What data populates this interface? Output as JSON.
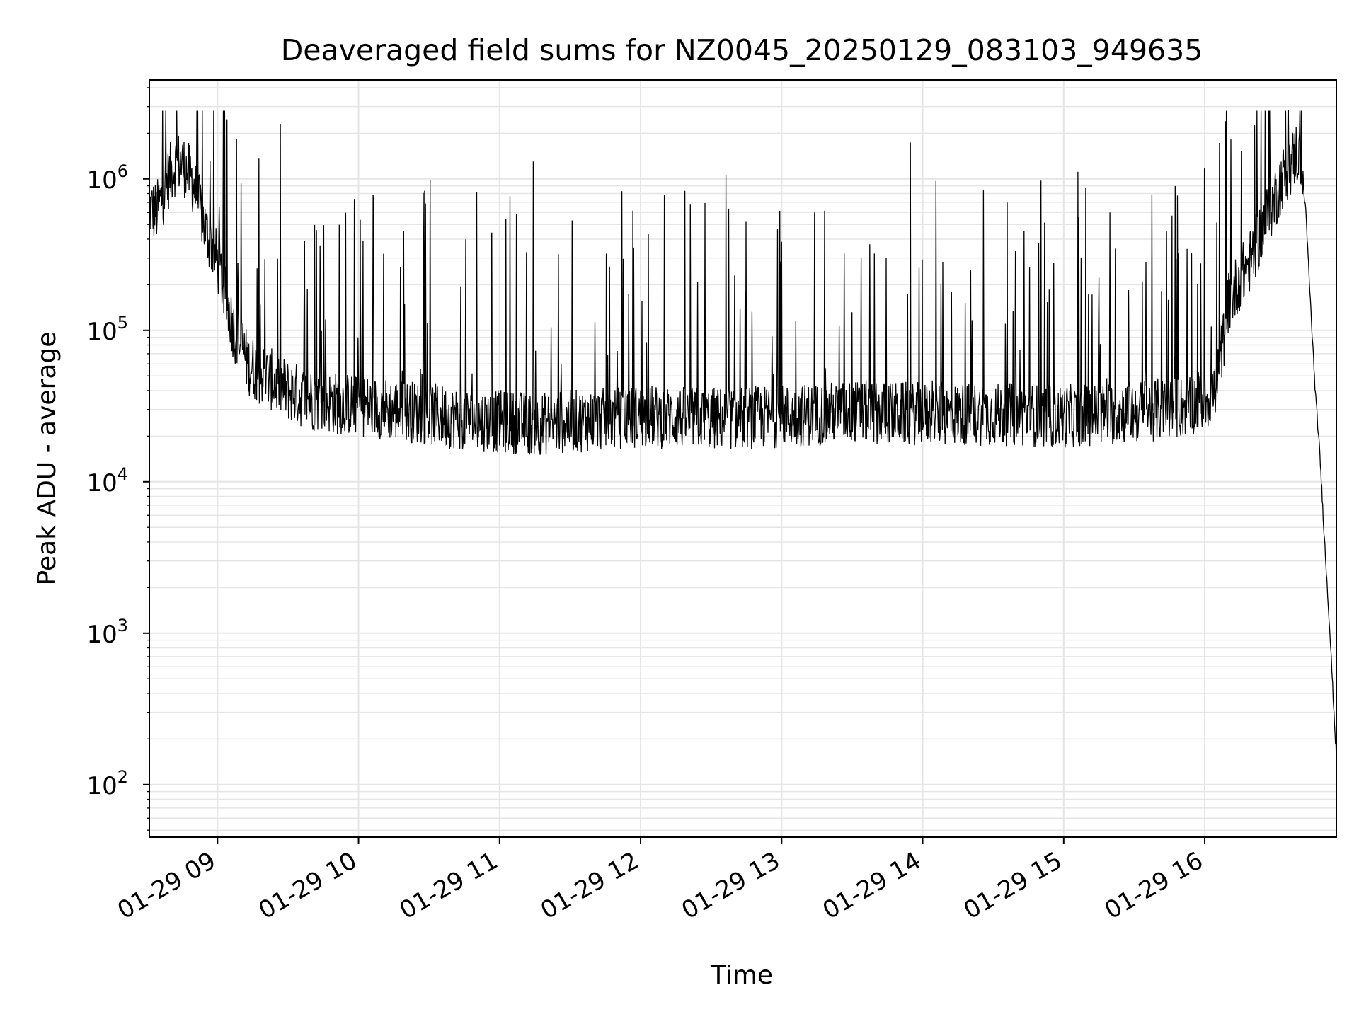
{
  "chart_data": {
    "type": "line",
    "title": "Deaveraged field sums for NZ0045_20250129_083103_949635",
    "xlabel": "Time",
    "ylabel": "Peak ADU - average",
    "x_type": "datetime",
    "x_ticks": [
      "2025-01-29T09:00",
      "2025-01-29T10:00",
      "2025-01-29T11:00",
      "2025-01-29T12:00",
      "2025-01-29T13:00",
      "2025-01-29T14:00",
      "2025-01-29T15:00",
      "2025-01-29T16:00"
    ],
    "x_tick_labels": [
      "01-29 09",
      "01-29 10",
      "01-29 11",
      "01-29 12",
      "01-29 13",
      "01-29 14",
      "01-29 15",
      "01-29 16"
    ],
    "xlim": [
      "2025-01-29T08:31",
      "2025-01-29T16:56"
    ],
    "y_scale": "log",
    "y_ticks": [
      100,
      1000,
      10000,
      100000,
      1000000
    ],
    "y_tick_labels": [
      {
        "base": "10",
        "exp": "2"
      },
      {
        "base": "10",
        "exp": "3"
      },
      {
        "base": "10",
        "exp": "4"
      },
      {
        "base": "10",
        "exp": "5"
      },
      {
        "base": "10",
        "exp": "6"
      }
    ],
    "ylim": [
      45,
      4500000
    ],
    "grid": true,
    "line_color": "#000000",
    "grid_color": "#e5e5e5",
    "series": [
      {
        "x": [
          "2025-01-29T08:31",
          "2025-01-29T08:34",
          "2025-01-29T08:37",
          "2025-01-29T08:40",
          "2025-01-29T08:43",
          "2025-01-29T08:46",
          "2025-01-29T08:49",
          "2025-01-29T08:52",
          "2025-01-29T08:55",
          "2025-01-29T08:58",
          "2025-01-29T09:01",
          "2025-01-29T09:04",
          "2025-01-29T09:07",
          "2025-01-29T09:10",
          "2025-01-29T09:13",
          "2025-01-29T09:16",
          "2025-01-29T09:20",
          "2025-01-29T09:25",
          "2025-01-29T09:30",
          "2025-01-29T09:35",
          "2025-01-29T09:40",
          "2025-01-29T09:50",
          "2025-01-29T10:00",
          "2025-01-29T10:15",
          "2025-01-29T10:30",
          "2025-01-29T10:45",
          "2025-01-29T11:00",
          "2025-01-29T11:15",
          "2025-01-29T11:30",
          "2025-01-29T12:00",
          "2025-01-29T12:30",
          "2025-01-29T13:00",
          "2025-01-29T13:30",
          "2025-01-29T14:00",
          "2025-01-29T14:30",
          "2025-01-29T15:00",
          "2025-01-29T15:30",
          "2025-01-29T15:50",
          "2025-01-29T16:00",
          "2025-01-29T16:05",
          "2025-01-29T16:10",
          "2025-01-29T16:15",
          "2025-01-29T16:20",
          "2025-01-29T16:25",
          "2025-01-29T16:30",
          "2025-01-29T16:33",
          "2025-01-29T16:36",
          "2025-01-29T16:39",
          "2025-01-29T16:41",
          "2025-01-29T16:43",
          "2025-01-29T16:45",
          "2025-01-29T16:47",
          "2025-01-29T16:49",
          "2025-01-29T16:51",
          "2025-01-29T16:53",
          "2025-01-29T16:55",
          "2025-01-29T16:56"
        ],
        "y": [
          650000,
          600000,
          800000,
          1100000,
          1300000,
          1200000,
          1000000,
          700000,
          450000,
          350000,
          250000,
          150000,
          100000,
          80000,
          60000,
          55000,
          50000,
          45000,
          40000,
          37000,
          35000,
          33000,
          32000,
          30000,
          28000,
          26000,
          25000,
          24000,
          25000,
          27000,
          26000,
          27000,
          29000,
          28000,
          28000,
          27000,
          29000,
          31000,
          35000,
          40000,
          150000,
          220000,
          300000,
          500000,
          750000,
          1000000,
          1200000,
          1500000,
          1300000,
          600000,
          150000,
          40000,
          15000,
          4000,
          1200,
          300,
          150
        ]
      }
    ]
  }
}
